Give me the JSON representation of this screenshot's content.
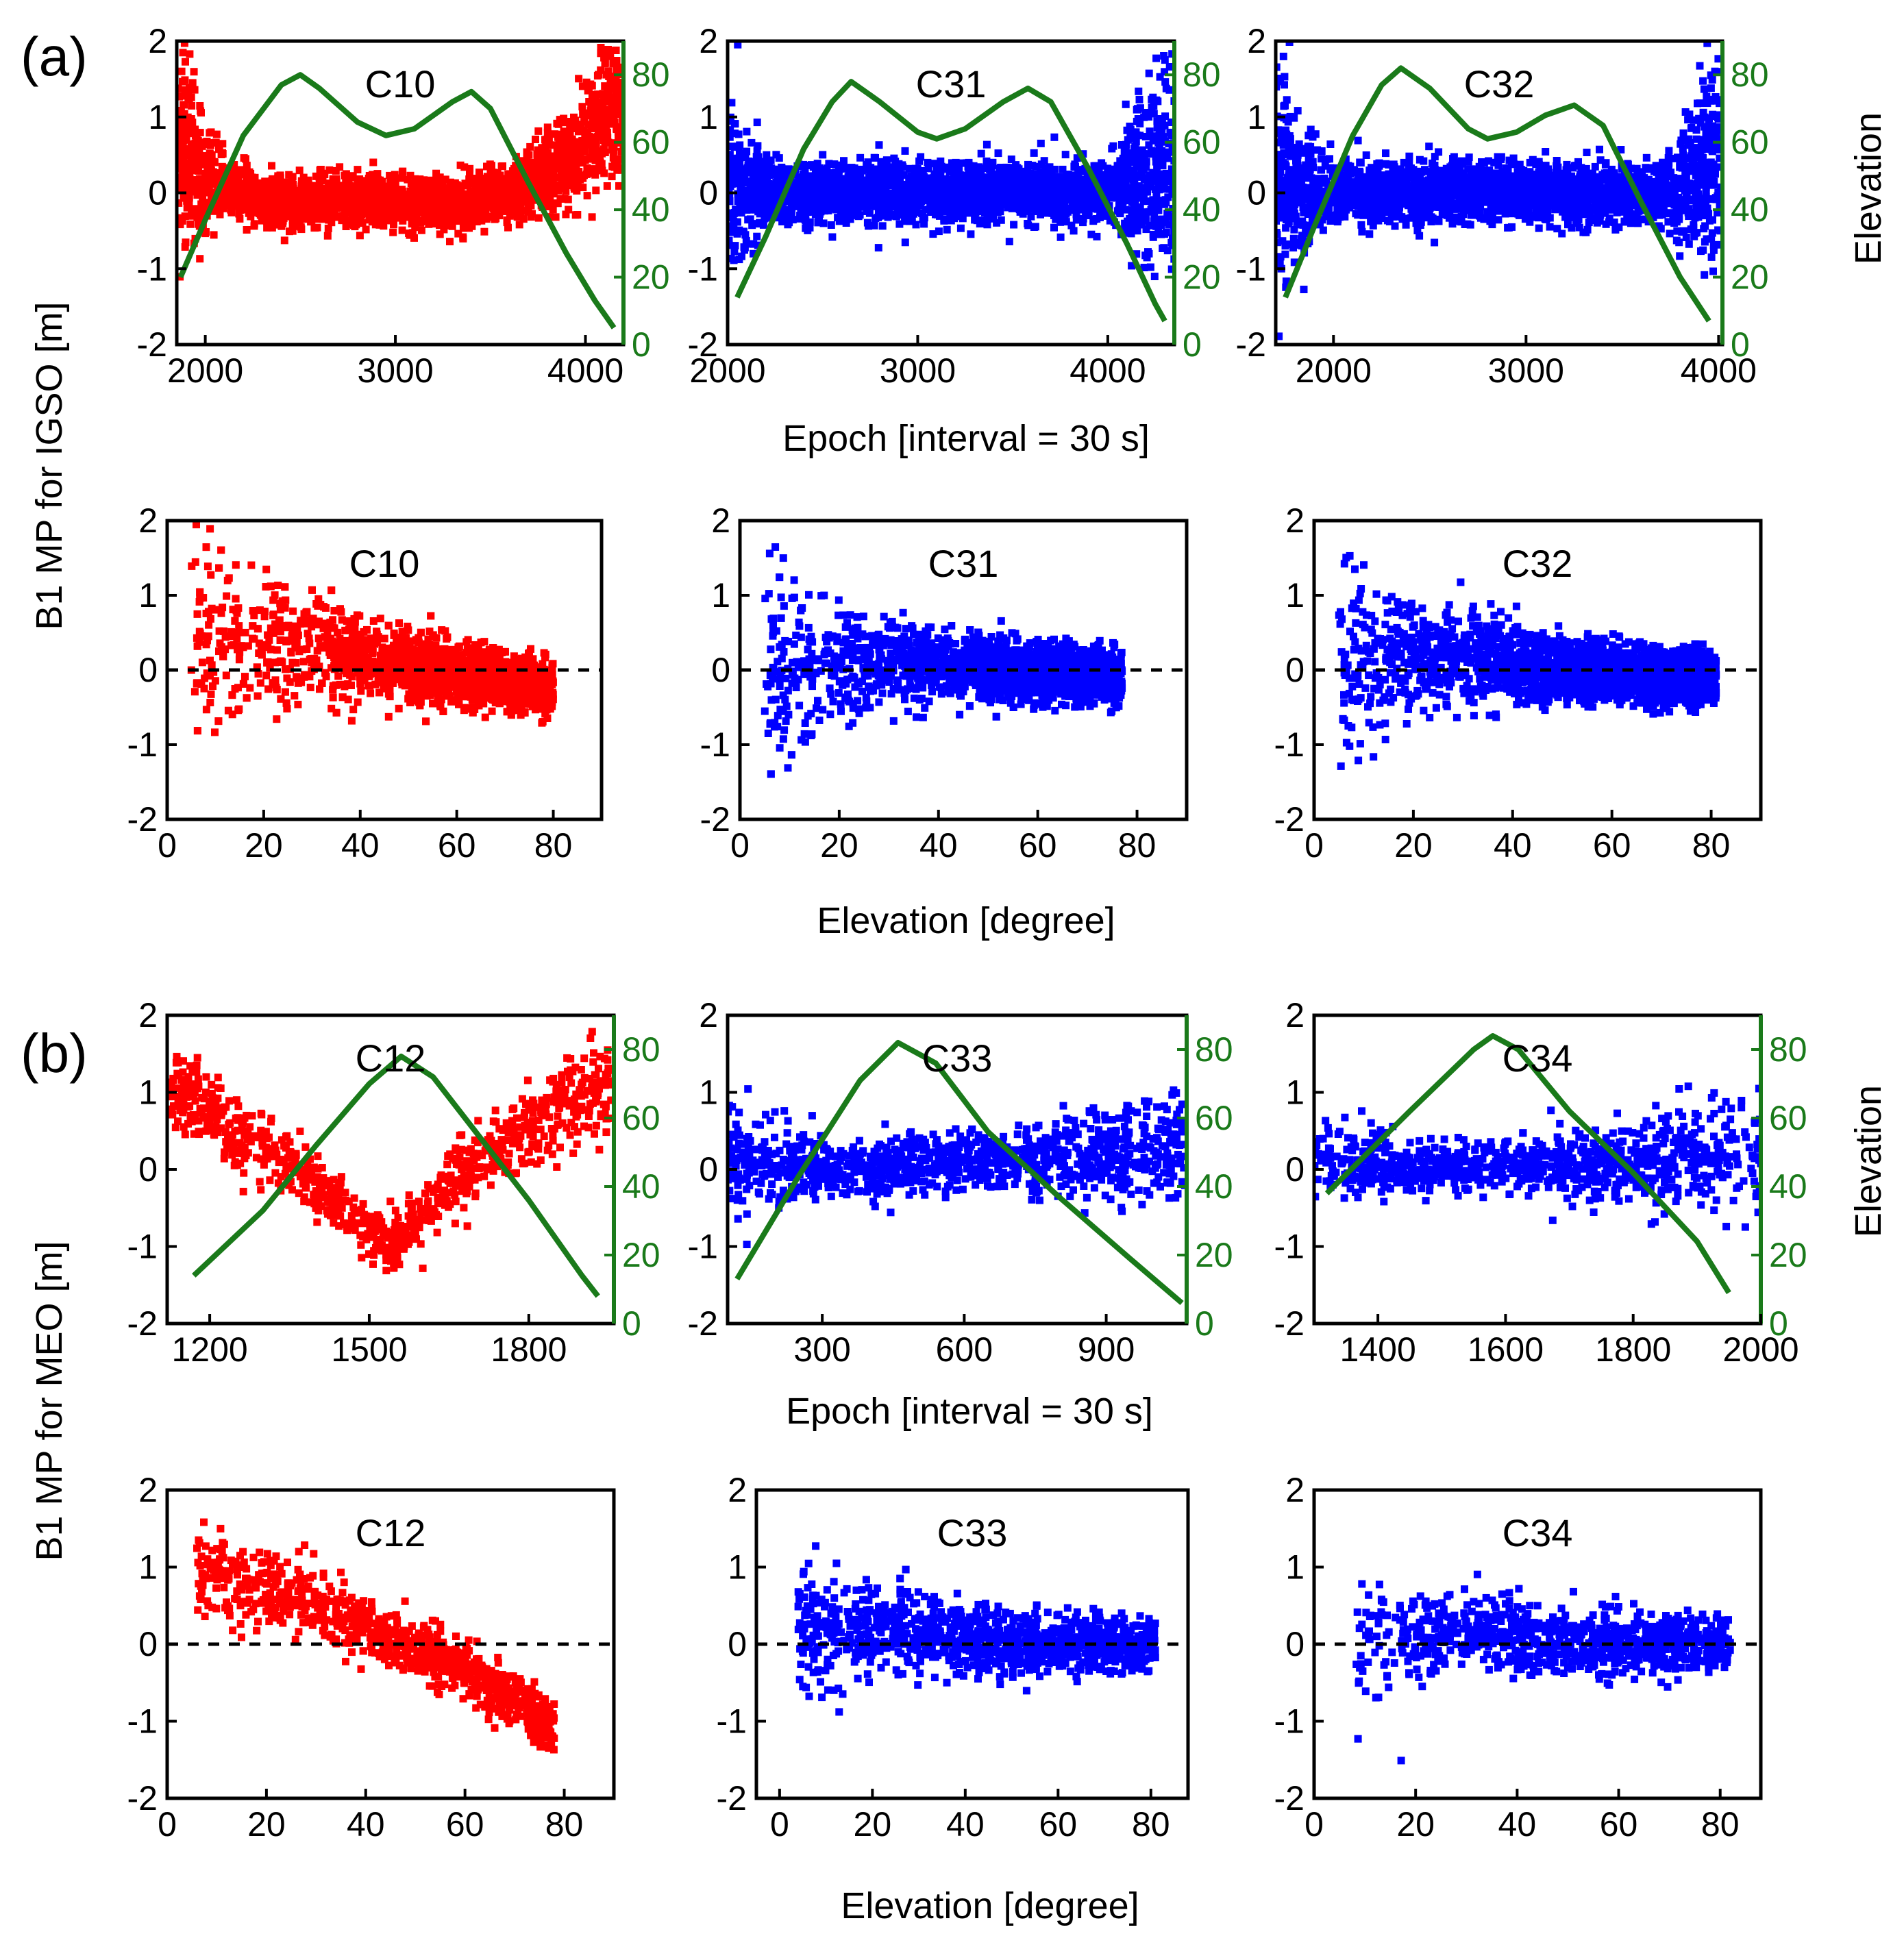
{
  "figure": {
    "panel_labels": [
      "(a)",
      "(b)"
    ],
    "colors": {
      "red_series": "#ff0000",
      "blue_series": "#0000ff",
      "elevation_line": "#1a7a1a",
      "axis": "#000000"
    }
  },
  "labels": {
    "a_y": "B1 MP for IGSO [m]",
    "b_y": "B1 MP for MEO [m]",
    "a_epoch_x": "Epoch [interval = 30 s]",
    "b_epoch_x": "Epoch [interval = 30 s]",
    "a_elev_x": "Elevation [degree]",
    "b_elev_x": "Elevation [degree]",
    "a_right": "Elevation",
    "b_right": "Elevation"
  },
  "chart_data": [
    {
      "id": "a-epoch-c10",
      "type": "scatter",
      "satellite": "C10",
      "color": "red",
      "xlim": [
        1850,
        4200
      ],
      "ylim": [
        -2,
        2
      ],
      "xticks": [
        2000,
        3000,
        4000
      ],
      "yticks": [
        -2,
        -1,
        0,
        1,
        2
      ],
      "y2lim": [
        0,
        90
      ],
      "y2ticks": [
        0,
        20,
        40,
        60,
        80
      ],
      "scatter_model": {
        "center": [
          [
            1880,
            0.6
          ],
          [
            2000,
            0.2
          ],
          [
            2300,
            -0.1
          ],
          [
            3300,
            -0.15
          ],
          [
            3600,
            0.0
          ],
          [
            3900,
            0.4
          ],
          [
            4150,
            1.1
          ]
        ],
        "spread": [
          [
            1880,
            1.2
          ],
          [
            2100,
            0.3
          ],
          [
            3400,
            0.3
          ],
          [
            3650,
            0.3
          ],
          [
            4150,
            0.8
          ]
        ],
        "n": 2800
      },
      "elevation_line": [
        [
          1870,
          20
        ],
        [
          2000,
          37
        ],
        [
          2200,
          62
        ],
        [
          2400,
          77
        ],
        [
          2500,
          80
        ],
        [
          2600,
          76
        ],
        [
          2800,
          66
        ],
        [
          2950,
          62
        ],
        [
          3100,
          64
        ],
        [
          3300,
          72
        ],
        [
          3400,
          75
        ],
        [
          3500,
          70
        ],
        [
          3700,
          48
        ],
        [
          3900,
          27
        ],
        [
          4050,
          13
        ],
        [
          4150,
          5
        ]
      ]
    },
    {
      "id": "a-epoch-c31",
      "type": "scatter",
      "satellite": "C31",
      "color": "blue",
      "xlim": [
        2000,
        4350
      ],
      "ylim": [
        -2,
        2
      ],
      "xticks": [
        2000,
        3000,
        4000
      ],
      "yticks": [
        -2,
        -1,
        0,
        1,
        2
      ],
      "y2lim": [
        0,
        90
      ],
      "y2ticks": [
        0,
        20,
        40,
        60,
        80
      ],
      "scatter_model": {
        "center": [
          [
            2000,
            0.1
          ],
          [
            2300,
            0.0
          ],
          [
            4000,
            0.0
          ],
          [
            4300,
            0.3
          ]
        ],
        "spread": [
          [
            2000,
            1.3
          ],
          [
            2200,
            0.35
          ],
          [
            4000,
            0.35
          ],
          [
            4300,
            1.3
          ]
        ],
        "n": 2600
      },
      "elevation_line": [
        [
          2050,
          14
        ],
        [
          2200,
          32
        ],
        [
          2400,
          58
        ],
        [
          2550,
          72
        ],
        [
          2650,
          78
        ],
        [
          2800,
          72
        ],
        [
          3000,
          63
        ],
        [
          3100,
          61
        ],
        [
          3250,
          64
        ],
        [
          3450,
          72
        ],
        [
          3580,
          76
        ],
        [
          3700,
          72
        ],
        [
          3900,
          52
        ],
        [
          4100,
          30
        ],
        [
          4250,
          12
        ],
        [
          4300,
          7
        ]
      ]
    },
    {
      "id": "a-epoch-c32",
      "type": "scatter",
      "satellite": "C32",
      "color": "blue",
      "xlim": [
        1700,
        4020
      ],
      "ylim": [
        -2,
        2
      ],
      "xticks": [
        2000,
        3000,
        4000
      ],
      "yticks": [
        -2,
        -1,
        0,
        1,
        2
      ],
      "y2lim": [
        0,
        90
      ],
      "y2ticks": [
        0,
        20,
        40,
        60,
        80
      ],
      "scatter_model": {
        "center": [
          [
            1720,
            0.1
          ],
          [
            2000,
            0.0
          ],
          [
            3700,
            0.0
          ],
          [
            3950,
            0.3
          ]
        ],
        "spread": [
          [
            1720,
            1.4
          ],
          [
            1950,
            0.35
          ],
          [
            3700,
            0.35
          ],
          [
            3950,
            1.2
          ]
        ],
        "n": 2600
      },
      "elevation_line": [
        [
          1750,
          14
        ],
        [
          1900,
          35
        ],
        [
          2100,
          62
        ],
        [
          2250,
          77
        ],
        [
          2350,
          82
        ],
        [
          2500,
          76
        ],
        [
          2700,
          64
        ],
        [
          2800,
          61
        ],
        [
          2950,
          63
        ],
        [
          3100,
          68
        ],
        [
          3250,
          71
        ],
        [
          3400,
          65
        ],
        [
          3600,
          42
        ],
        [
          3800,
          20
        ],
        [
          3950,
          7
        ]
      ]
    },
    {
      "id": "a-elev-c10",
      "type": "scatter",
      "satellite": "C10",
      "color": "red",
      "xlim": [
        0,
        90
      ],
      "ylim": [
        -2,
        2
      ],
      "xticks": [
        0,
        20,
        40,
        60,
        80
      ],
      "yticks": [
        -2,
        -1,
        0,
        1,
        2
      ],
      "zero_line": true,
      "scatter_model": {
        "xrange": [
          5,
          80
        ],
        "center": [
          [
            5,
            0.6
          ],
          [
            20,
            0.4
          ],
          [
            40,
            0.1
          ],
          [
            60,
            -0.05
          ],
          [
            80,
            -0.25
          ]
        ],
        "spread": [
          [
            5,
            1.2
          ],
          [
            25,
            0.8
          ],
          [
            45,
            0.4
          ],
          [
            80,
            0.3
          ]
        ],
        "n": 2600,
        "density": [
          [
            5,
            0.4
          ],
          [
            40,
            0.8
          ],
          [
            60,
            2.6
          ],
          [
            80,
            2.6
          ]
        ]
      }
    },
    {
      "id": "a-elev-c31",
      "type": "scatter",
      "satellite": "C31",
      "color": "blue",
      "xlim": [
        0,
        90
      ],
      "ylim": [
        -2,
        2
      ],
      "xticks": [
        0,
        20,
        40,
        60,
        80
      ],
      "yticks": [
        -2,
        -1,
        0,
        1,
        2
      ],
      "zero_line": true,
      "scatter_model": {
        "xrange": [
          5,
          77
        ],
        "center": [
          [
            5,
            0.1
          ],
          [
            20,
            0.1
          ],
          [
            50,
            0.0
          ],
          [
            77,
            -0.1
          ]
        ],
        "spread": [
          [
            5,
            1.3
          ],
          [
            25,
            0.6
          ],
          [
            45,
            0.35
          ],
          [
            77,
            0.3
          ]
        ],
        "n": 2500,
        "density": [
          [
            5,
            0.4
          ],
          [
            40,
            0.8
          ],
          [
            58,
            2.4
          ],
          [
            77,
            2.4
          ]
        ]
      }
    },
    {
      "id": "a-elev-c32",
      "type": "scatter",
      "satellite": "C32",
      "color": "blue",
      "xlim": [
        0,
        90
      ],
      "ylim": [
        -2,
        2
      ],
      "xticks": [
        0,
        20,
        40,
        60,
        80
      ],
      "yticks": [
        -2,
        -1,
        0,
        1,
        2
      ],
      "zero_line": true,
      "scatter_model": {
        "xrange": [
          5,
          81
        ],
        "center": [
          [
            5,
            0.2
          ],
          [
            20,
            0.2
          ],
          [
            50,
            0.0
          ],
          [
            81,
            -0.1
          ]
        ],
        "spread": [
          [
            5,
            1.2
          ],
          [
            25,
            0.6
          ],
          [
            50,
            0.35
          ],
          [
            81,
            0.3
          ]
        ],
        "n": 2500,
        "density": [
          [
            5,
            0.4
          ],
          [
            40,
            0.8
          ],
          [
            60,
            2.2
          ],
          [
            81,
            2.2
          ]
        ]
      }
    },
    {
      "id": "b-epoch-c12",
      "type": "scatter",
      "satellite": "C12",
      "color": "red",
      "xlim": [
        1120,
        1960
      ],
      "ylim": [
        -2,
        2
      ],
      "xticks": [
        1200,
        1500,
        1800
      ],
      "yticks": [
        -2,
        -1,
        0,
        1,
        2
      ],
      "y2lim": [
        0,
        90
      ],
      "y2ticks": [
        0,
        20,
        40,
        60,
        80
      ],
      "scatter_model": {
        "center": [
          [
            1170,
            0.9
          ],
          [
            1250,
            0.45
          ],
          [
            1400,
            -0.2
          ],
          [
            1540,
            -1.0
          ],
          [
            1650,
            -0.2
          ],
          [
            1800,
            0.5
          ],
          [
            1900,
            1.0
          ]
        ],
        "spread": [
          [
            1170,
            0.45
          ],
          [
            1540,
            0.3
          ],
          [
            1900,
            0.55
          ]
        ],
        "n": 900
      },
      "elevation_line": [
        [
          1170,
          14
        ],
        [
          1300,
          33
        ],
        [
          1400,
          52
        ],
        [
          1500,
          70
        ],
        [
          1560,
          78
        ],
        [
          1620,
          72
        ],
        [
          1700,
          56
        ],
        [
          1800,
          36
        ],
        [
          1900,
          14
        ],
        [
          1930,
          8
        ]
      ]
    },
    {
      "id": "b-epoch-c33",
      "type": "scatter",
      "satellite": "C33",
      "color": "blue",
      "xlim": [
        100,
        1070
      ],
      "ylim": [
        -2,
        2
      ],
      "xticks": [
        300,
        600,
        900
      ],
      "yticks": [
        -2,
        -1,
        0,
        1,
        2
      ],
      "y2lim": [
        0,
        90
      ],
      "y2ticks": [
        0,
        20,
        40,
        60,
        80
      ],
      "scatter_model": {
        "center": [
          [
            120,
            0.1
          ],
          [
            300,
            0.0
          ],
          [
            700,
            0.1
          ],
          [
            1050,
            0.3
          ]
        ],
        "spread": [
          [
            120,
            0.7
          ],
          [
            300,
            0.3
          ],
          [
            700,
            0.35
          ],
          [
            1050,
            0.7
          ]
        ],
        "n": 1100
      },
      "elevation_line": [
        [
          120,
          13
        ],
        [
          250,
          43
        ],
        [
          380,
          71
        ],
        [
          460,
          82
        ],
        [
          540,
          76
        ],
        [
          650,
          56
        ],
        [
          800,
          37
        ],
        [
          950,
          19
        ],
        [
          1060,
          6
        ]
      ]
    },
    {
      "id": "b-epoch-c34",
      "type": "scatter",
      "satellite": "C34",
      "color": "blue",
      "xlim": [
        1300,
        2000
      ],
      "ylim": [
        -2,
        2
      ],
      "xticks": [
        1400,
        1600,
        1800,
        2000
      ],
      "yticks": [
        -2,
        -1,
        0,
        1,
        2
      ],
      "y2lim": [
        0,
        90
      ],
      "y2ticks": [
        0,
        20,
        40,
        60,
        80
      ],
      "scatter_model": {
        "center": [
          [
            1320,
            0.1
          ],
          [
            1500,
            0.0
          ],
          [
            1800,
            0.1
          ],
          [
            1950,
            0.2
          ]
        ],
        "spread": [
          [
            1320,
            0.4
          ],
          [
            1600,
            0.3
          ],
          [
            1950,
            0.65
          ]
        ],
        "n": 900
      },
      "elevation_line": [
        [
          1320,
          38
        ],
        [
          1450,
          62
        ],
        [
          1550,
          80
        ],
        [
          1580,
          84
        ],
        [
          1620,
          80
        ],
        [
          1700,
          62
        ],
        [
          1800,
          44
        ],
        [
          1900,
          24
        ],
        [
          1950,
          9
        ]
      ]
    },
    {
      "id": "b-elev-c12",
      "type": "scatter",
      "satellite": "C12",
      "color": "red",
      "xlim": [
        0,
        90
      ],
      "ylim": [
        -2,
        2
      ],
      "xticks": [
        0,
        20,
        40,
        60,
        80
      ],
      "yticks": [
        -2,
        -1,
        0,
        1,
        2
      ],
      "zero_line": true,
      "scatter_model": {
        "xrange": [
          6,
          78
        ],
        "center": [
          [
            6,
            1.0
          ],
          [
            20,
            0.7
          ],
          [
            40,
            0.2
          ],
          [
            60,
            -0.3
          ],
          [
            78,
            -1.1
          ]
        ],
        "spread": [
          [
            6,
            0.55
          ],
          [
            40,
            0.35
          ],
          [
            78,
            0.3
          ]
        ],
        "n": 900,
        "density": [
          [
            6,
            0.8
          ],
          [
            40,
            1.0
          ],
          [
            75,
            1.6
          ],
          [
            78,
            1.6
          ]
        ]
      }
    },
    {
      "id": "b-elev-c33",
      "type": "scatter",
      "satellite": "C33",
      "color": "blue",
      "xlim": [
        -5,
        88
      ],
      "ylim": [
        -2,
        2
      ],
      "xticks": [
        0,
        20,
        40,
        60,
        80
      ],
      "yticks": [
        -2,
        -1,
        0,
        1,
        2
      ],
      "zero_line": true,
      "scatter_model": {
        "xrange": [
          4,
          81
        ],
        "center": [
          [
            4,
            0.2
          ],
          [
            20,
            0.2
          ],
          [
            50,
            0.0
          ],
          [
            81,
            -0.05
          ]
        ],
        "spread": [
          [
            4,
            0.7
          ],
          [
            25,
            0.45
          ],
          [
            81,
            0.3
          ]
        ],
        "n": 1100,
        "density": [
          [
            4,
            0.7
          ],
          [
            40,
            1.0
          ],
          [
            81,
            1.2
          ]
        ]
      }
    },
    {
      "id": "b-elev-c34",
      "type": "scatter",
      "satellite": "C34",
      "color": "blue",
      "xlim": [
        0,
        88
      ],
      "ylim": [
        -2,
        2
      ],
      "xticks": [
        0,
        20,
        40,
        60,
        80
      ],
      "yticks": [
        -2,
        -1,
        0,
        1,
        2
      ],
      "zero_line": true,
      "scatter_model": {
        "xrange": [
          8,
          82
        ],
        "center": [
          [
            8,
            0.0
          ],
          [
            30,
            0.15
          ],
          [
            60,
            0.0
          ],
          [
            82,
            0.0
          ]
        ],
        "spread": [
          [
            8,
            0.7
          ],
          [
            30,
            0.45
          ],
          [
            82,
            0.3
          ]
        ],
        "n": 900,
        "density": [
          [
            8,
            0.4
          ],
          [
            35,
            1.0
          ],
          [
            82,
            1.4
          ]
        ]
      }
    }
  ]
}
